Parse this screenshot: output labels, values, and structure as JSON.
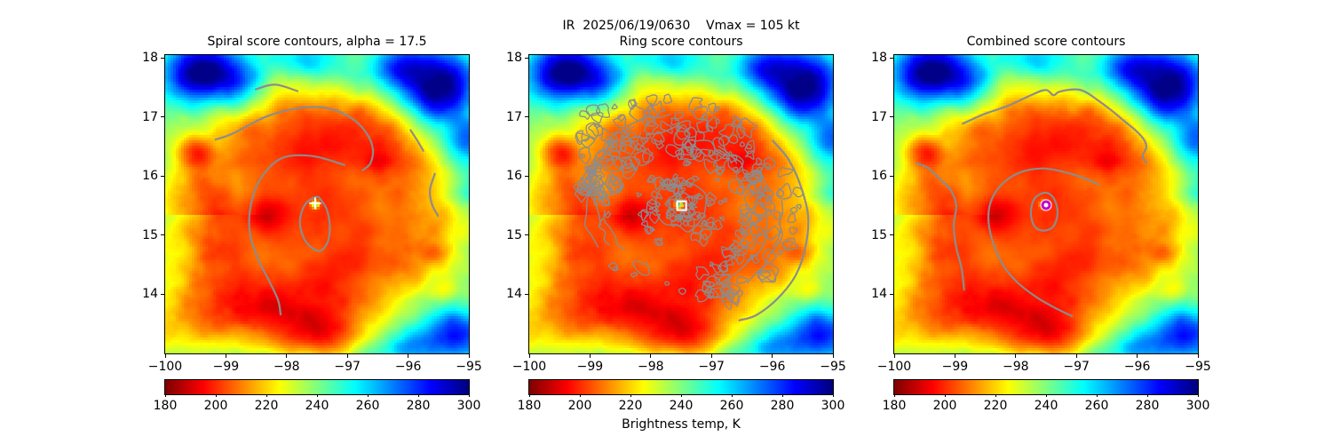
{
  "figure": {
    "main_title": "IR  2025/06/19/0630    Vmax = 105 kt",
    "colorbar_label": "Brightness temp, K",
    "background": "#ffffff"
  },
  "chart_data": {
    "type": "heatmap",
    "title": "IR  2025/06/19/0630    Vmax = 105 kt",
    "scene": "Infrared satellite brightness-temperature image of a tropical cyclone shown identically in three panels; cold cloud shield (~190-220 K, dark red/orange) covers the storm center, warm clear air (~260-300 K, cyan/blue) in NW and NE corners and SE edge, small warm eye spot near lon -97.5 lat 15.5, gray score contours overlaid per panel",
    "xlim": [
      -100,
      -95
    ],
    "ylim": [
      13.0,
      18.05
    ],
    "x_ticks": [
      -100,
      -99,
      -98,
      -97,
      -96,
      -95
    ],
    "x_tick_labels": [
      "−100",
      "−99",
      "−98",
      "−97",
      "−96",
      "−95"
    ],
    "y_ticks": [
      18,
      17,
      16,
      15,
      14
    ],
    "y_tick_labels": [
      "18",
      "17",
      "16",
      "15",
      "14"
    ],
    "colormap": "jet_r",
    "contour_color": "#8c8c8c",
    "storm_center": {
      "lon": -97.5,
      "lat": 15.5
    },
    "colorbar": {
      "min": 180,
      "max": 300,
      "ticks": [
        180,
        200,
        220,
        240,
        260,
        280,
        300
      ],
      "tick_labels": [
        "180",
        "200",
        "220",
        "240",
        "260",
        "280",
        "300"
      ],
      "label": "Brightness temp, K"
    },
    "panels": [
      {
        "id": "spiral",
        "title": "Spiral score contours, alpha = 17.5",
        "contour_style": "smooth",
        "marker": {
          "shape": "plus",
          "color": "#ffffff",
          "x": -97.53,
          "y": 15.54
        },
        "contours": [
          [
            [
              -98.51,
              17.47
            ],
            [
              -98.19,
              17.55
            ],
            [
              -97.82,
              17.44
            ]
          ],
          [
            [
              -99.17,
              16.62
            ],
            [
              -98.89,
              16.72
            ],
            [
              -98.33,
              17.01
            ],
            [
              -97.75,
              17.16
            ],
            [
              -97.28,
              17.14
            ],
            [
              -96.9,
              16.96
            ],
            [
              -96.68,
              16.72
            ],
            [
              -96.58,
              16.46
            ],
            [
              -96.62,
              16.22
            ],
            [
              -96.75,
              16.1
            ]
          ],
          [
            [
              -97.05,
              16.19
            ],
            [
              -97.57,
              16.34
            ],
            [
              -98.07,
              16.31
            ],
            [
              -98.41,
              15.99
            ],
            [
              -98.58,
              15.56
            ],
            [
              -98.61,
              15.07
            ],
            [
              -98.48,
              14.62
            ],
            [
              -98.29,
              14.23
            ],
            [
              -98.14,
              13.9
            ],
            [
              -98.1,
              13.66
            ]
          ],
          [
            [
              -95.96,
              16.78
            ],
            [
              -95.86,
              16.62
            ],
            [
              -95.75,
              16.43
            ]
          ],
          [
            [
              -95.56,
              16.04
            ],
            [
              -95.64,
              15.77
            ],
            [
              -95.61,
              15.53
            ],
            [
              -95.51,
              15.33
            ]
          ]
        ],
        "closed_contours": [
          [
            [
              -97.51,
              15.65
            ],
            [
              -97.69,
              15.53
            ],
            [
              -97.78,
              15.26
            ],
            [
              -97.73,
              14.98
            ],
            [
              -97.6,
              14.8
            ],
            [
              -97.44,
              14.74
            ],
            [
              -97.32,
              14.9
            ],
            [
              -97.29,
              15.17
            ],
            [
              -97.34,
              15.44
            ],
            [
              -97.43,
              15.59
            ]
          ]
        ],
        "speckled": false
      },
      {
        "id": "ring",
        "title": "Ring score contours",
        "contour_style": "noisy-speckled-annulus",
        "marker": {
          "shape": "square",
          "color": "#ffffff",
          "x": -97.49,
          "y": 15.5
        },
        "contours": [
          [
            [
              -95.99,
              16.6
            ],
            [
              -95.73,
              16.28
            ],
            [
              -95.53,
              15.83
            ],
            [
              -95.41,
              15.33
            ],
            [
              -95.45,
              14.81
            ],
            [
              -95.61,
              14.33
            ],
            [
              -95.91,
              13.93
            ],
            [
              -96.26,
              13.65
            ],
            [
              -96.54,
              13.56
            ]
          ]
        ],
        "closed_contours": [],
        "speckled": true
      },
      {
        "id": "combined",
        "title": "Combined score contours",
        "contour_style": "smooth",
        "marker": {
          "shape": "ring",
          "color": "#c800c8",
          "face": "#ffffff",
          "x": -97.5,
          "y": 15.51
        },
        "contours": [
          [
            [
              -98.87,
              16.89
            ],
            [
              -98.52,
              17.05
            ],
            [
              -98.13,
              17.19
            ],
            [
              -97.73,
              17.38
            ],
            [
              -97.5,
              17.46
            ],
            [
              -97.38,
              17.37
            ],
            [
              -97.28,
              17.43
            ],
            [
              -97.03,
              17.47
            ],
            [
              -96.86,
              17.43
            ],
            [
              -96.64,
              17.28
            ],
            [
              -96.42,
              17.11
            ],
            [
              -96.21,
              16.93
            ],
            [
              -96.02,
              16.77
            ],
            [
              -95.89,
              16.62
            ],
            [
              -95.85,
              16.49
            ],
            [
              -95.91,
              16.34
            ],
            [
              -95.85,
              16.23
            ]
          ],
          [
            [
              -99.63,
              16.22
            ],
            [
              -99.43,
              16.13
            ],
            [
              -99.25,
              15.95
            ],
            [
              -99.08,
              15.78
            ],
            [
              -98.98,
              15.51
            ],
            [
              -99.02,
              15.17
            ],
            [
              -98.98,
              14.8
            ],
            [
              -98.89,
              14.44
            ],
            [
              -98.85,
              14.08
            ]
          ],
          [
            [
              -96.64,
              15.86
            ],
            [
              -96.91,
              15.98
            ],
            [
              -97.24,
              16.08
            ],
            [
              -97.56,
              16.13
            ],
            [
              -97.91,
              16.07
            ],
            [
              -98.2,
              15.89
            ],
            [
              -98.39,
              15.62
            ],
            [
              -98.45,
              15.3
            ],
            [
              -98.39,
              14.93
            ],
            [
              -98.23,
              14.53
            ],
            [
              -97.98,
              14.21
            ],
            [
              -97.67,
              13.96
            ],
            [
              -97.35,
              13.77
            ],
            [
              -97.07,
              13.63
            ]
          ]
        ],
        "closed_contours": [
          [
            [
              -97.51,
              15.72
            ],
            [
              -97.69,
              15.62
            ],
            [
              -97.75,
              15.38
            ],
            [
              -97.69,
              15.15
            ],
            [
              -97.54,
              15.08
            ],
            [
              -97.38,
              15.15
            ],
            [
              -97.31,
              15.38
            ],
            [
              -97.37,
              15.62
            ]
          ]
        ],
        "speckled": false
      }
    ]
  }
}
